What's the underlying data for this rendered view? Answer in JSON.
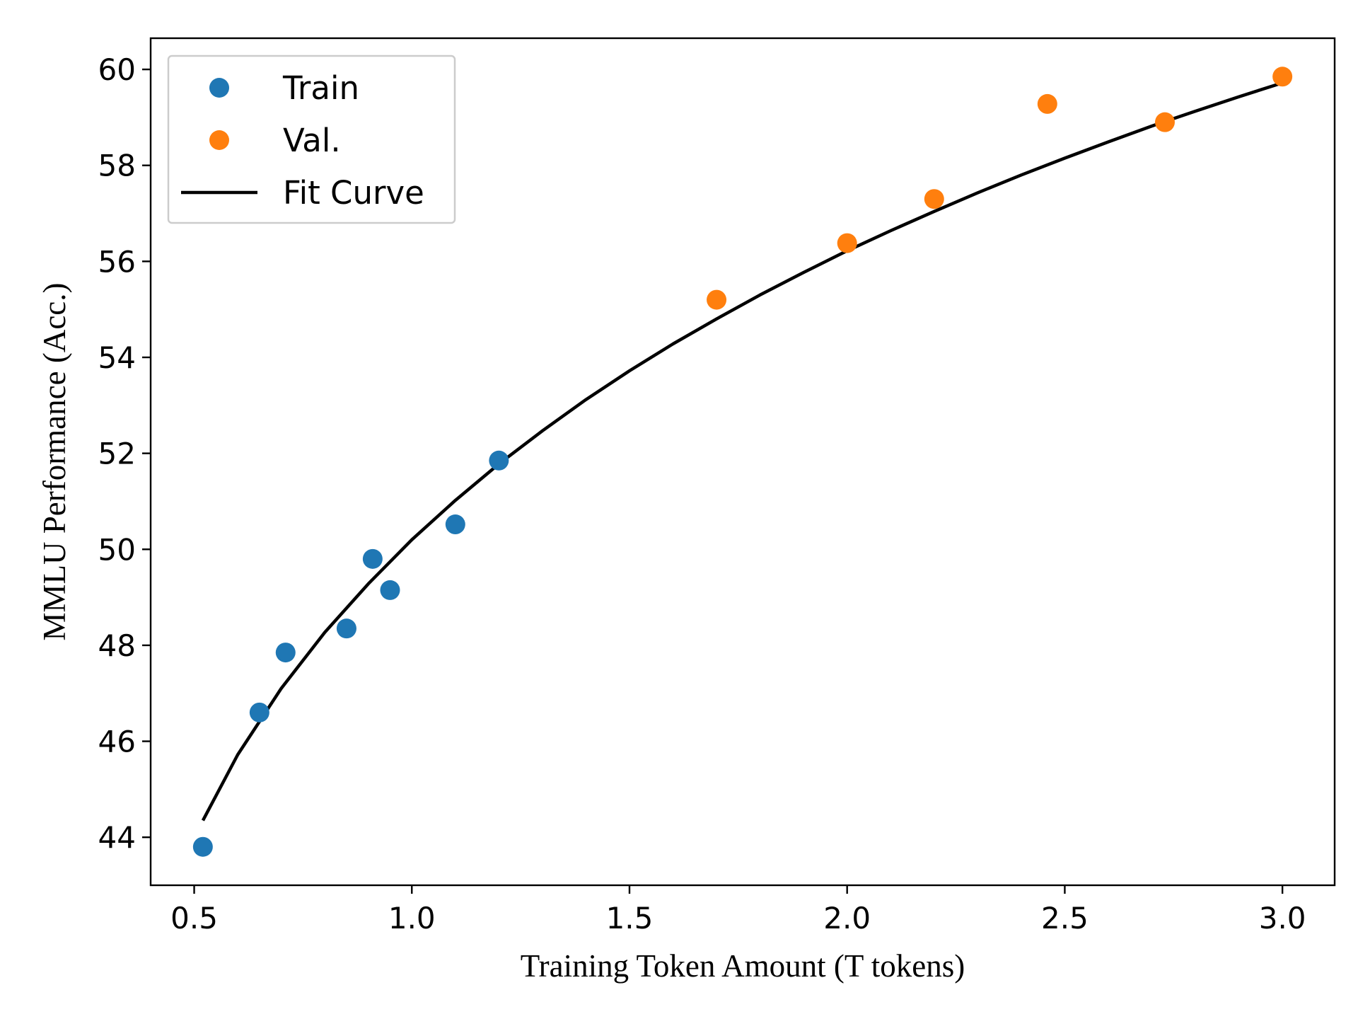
{
  "chart_data": {
    "type": "scatter",
    "xlabel": "Training Token Amount (T tokens)",
    "ylabel": "MMLU Performance (Acc.)",
    "xlim": [
      0.4,
      3.12
    ],
    "ylim": [
      43.0,
      60.65
    ],
    "xticks": [
      "0.5",
      "1.0",
      "1.5",
      "2.0",
      "2.5",
      "3.0"
    ],
    "yticks": [
      "44",
      "46",
      "48",
      "50",
      "52",
      "54",
      "56",
      "58",
      "60"
    ],
    "grid": false,
    "legend_position": "top-left",
    "series": [
      {
        "name": "Train",
        "kind": "scatter",
        "color": "#1f77b4",
        "points": [
          {
            "x": 0.52,
            "y": 43.8
          },
          {
            "x": 0.65,
            "y": 46.6
          },
          {
            "x": 0.71,
            "y": 47.85
          },
          {
            "x": 0.85,
            "y": 48.35
          },
          {
            "x": 0.91,
            "y": 49.8
          },
          {
            "x": 0.95,
            "y": 49.15
          },
          {
            "x": 1.1,
            "y": 50.52
          },
          {
            "x": 1.2,
            "y": 51.85
          }
        ]
      },
      {
        "name": "Val.",
        "kind": "scatter",
        "color": "#ff7f0e",
        "points": [
          {
            "x": 1.7,
            "y": 55.2
          },
          {
            "x": 2.0,
            "y": 56.38
          },
          {
            "x": 2.2,
            "y": 57.3
          },
          {
            "x": 2.46,
            "y": 59.28
          },
          {
            "x": 2.73,
            "y": 58.9
          },
          {
            "x": 3.0,
            "y": 59.85
          }
        ]
      },
      {
        "name": "Fit Curve",
        "kind": "line",
        "color": "#000000",
        "points": [
          {
            "x": 0.52,
            "y": 44.35
          },
          {
            "x": 0.6,
            "y": 45.72
          },
          {
            "x": 0.7,
            "y": 47.1
          },
          {
            "x": 0.8,
            "y": 48.27
          },
          {
            "x": 0.9,
            "y": 49.28
          },
          {
            "x": 1.0,
            "y": 50.2
          },
          {
            "x": 1.1,
            "y": 51.02
          },
          {
            "x": 1.2,
            "y": 51.78
          },
          {
            "x": 1.3,
            "y": 52.47
          },
          {
            "x": 1.4,
            "y": 53.12
          },
          {
            "x": 1.5,
            "y": 53.72
          },
          {
            "x": 1.6,
            "y": 54.28
          },
          {
            "x": 1.7,
            "y": 54.8
          },
          {
            "x": 1.8,
            "y": 55.3
          },
          {
            "x": 1.9,
            "y": 55.77
          },
          {
            "x": 2.0,
            "y": 56.22
          },
          {
            "x": 2.1,
            "y": 56.64
          },
          {
            "x": 2.2,
            "y": 57.04
          },
          {
            "x": 2.3,
            "y": 57.43
          },
          {
            "x": 2.4,
            "y": 57.8
          },
          {
            "x": 2.5,
            "y": 58.15
          },
          {
            "x": 2.6,
            "y": 58.49
          },
          {
            "x": 2.7,
            "y": 58.82
          },
          {
            "x": 2.8,
            "y": 59.13
          },
          {
            "x": 2.9,
            "y": 59.43
          },
          {
            "x": 3.0,
            "y": 59.72
          }
        ]
      }
    ]
  }
}
